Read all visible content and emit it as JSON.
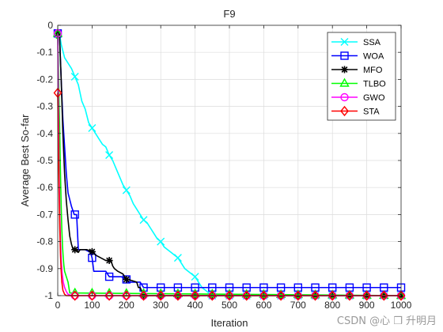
{
  "chart_data": {
    "type": "line",
    "title": "F9",
    "xlabel": "Iteration",
    "ylabel": "Average Best So-far",
    "xlim": [
      0,
      1000
    ],
    "ylim": [
      -1,
      0
    ],
    "xticks": [
      "0",
      "100",
      "200",
      "300",
      "400",
      "500",
      "600",
      "700",
      "800",
      "900",
      "1000"
    ],
    "yticks": [
      "0",
      "-0.1",
      "-0.2",
      "-0.3",
      "-0.4",
      "-0.5",
      "-0.6",
      "-0.7",
      "-0.8",
      "-0.9",
      "-1"
    ],
    "grid": true,
    "legend_position": "top-right",
    "series": [
      {
        "name": "SSA",
        "color": "#00ffff",
        "marker": "x",
        "x": [
          0,
          5,
          10,
          20,
          30,
          40,
          50,
          60,
          70,
          80,
          90,
          100,
          110,
          120,
          130,
          140,
          150,
          160,
          170,
          180,
          190,
          200,
          210,
          220,
          230,
          240,
          250,
          260,
          270,
          280,
          290,
          300,
          310,
          320,
          330,
          340,
          350,
          360,
          370,
          380,
          390,
          400,
          410,
          420,
          430,
          440,
          450,
          1000
        ],
        "y": [
          -0.03,
          -0.03,
          -0.07,
          -0.12,
          -0.14,
          -0.16,
          -0.19,
          -0.22,
          -0.28,
          -0.31,
          -0.36,
          -0.38,
          -0.4,
          -0.42,
          -0.44,
          -0.45,
          -0.48,
          -0.5,
          -0.53,
          -0.56,
          -0.59,
          -0.61,
          -0.63,
          -0.66,
          -0.68,
          -0.7,
          -0.72,
          -0.73,
          -0.75,
          -0.77,
          -0.79,
          -0.8,
          -0.82,
          -0.83,
          -0.84,
          -0.85,
          -0.86,
          -0.88,
          -0.9,
          -0.91,
          -0.92,
          -0.93,
          -0.95,
          -0.97,
          -0.98,
          -0.99,
          -1.0,
          -1.0
        ],
        "marker_x": [
          0,
          50,
          100,
          150,
          200,
          250,
          300,
          350,
          400,
          450,
          500,
          550,
          600,
          650,
          700,
          750,
          800,
          850,
          900,
          950,
          1000
        ]
      },
      {
        "name": "WOA",
        "color": "#0000ff",
        "marker": "square",
        "x": [
          0,
          5,
          10,
          15,
          20,
          25,
          30,
          40,
          48,
          55,
          60,
          80,
          95,
          100,
          105,
          140,
          150,
          185,
          200,
          205,
          240,
          250,
          1000
        ],
        "y": [
          -0.03,
          -0.03,
          -0.2,
          -0.35,
          -0.45,
          -0.55,
          -0.62,
          -0.67,
          -0.7,
          -0.7,
          -0.83,
          -0.83,
          -0.84,
          -0.86,
          -0.91,
          -0.91,
          -0.93,
          -0.93,
          -0.94,
          -0.95,
          -0.95,
          -0.97,
          -0.97
        ],
        "marker_x": [
          0,
          50,
          100,
          150,
          200,
          250,
          300,
          350,
          400,
          450,
          500,
          550,
          600,
          650,
          700,
          750,
          800,
          850,
          900,
          950,
          1000
        ]
      },
      {
        "name": "MFO",
        "color": "#000000",
        "marker": "star",
        "x": [
          0,
          5,
          10,
          15,
          20,
          25,
          30,
          35,
          40,
          45,
          50,
          55,
          60,
          65,
          85,
          105,
          110,
          140,
          155,
          160,
          165,
          175,
          190,
          195,
          200,
          205,
          230,
          235,
          240,
          250,
          1000
        ],
        "y": [
          -0.03,
          -0.03,
          -0.2,
          -0.4,
          -0.55,
          -0.65,
          -0.72,
          -0.78,
          -0.81,
          -0.83,
          -0.83,
          -0.83,
          -0.84,
          -0.83,
          -0.83,
          -0.84,
          -0.85,
          -0.87,
          -0.87,
          -0.89,
          -0.9,
          -0.91,
          -0.92,
          -0.93,
          -0.94,
          -0.94,
          -0.95,
          -0.97,
          -0.97,
          -1.0,
          -1.0
        ],
        "marker_x": [
          0,
          50,
          100,
          150,
          200,
          250,
          300,
          350,
          400,
          450,
          500,
          550,
          600,
          650,
          700,
          750,
          800,
          850,
          900,
          950,
          1000
        ]
      },
      {
        "name": "TLBO",
        "color": "#00ff00",
        "marker": "triangle",
        "x": [
          -4,
          0,
          5,
          8,
          10,
          12,
          14,
          16,
          18,
          20,
          25,
          30,
          35,
          1000
        ],
        "y": [
          -0.05,
          -0.03,
          -0.35,
          -0.55,
          -0.67,
          -0.76,
          -0.82,
          -0.86,
          -0.89,
          -0.91,
          -0.93,
          -0.95,
          -0.99,
          -1.0
        ],
        "marker_x": [
          0,
          50,
          100,
          150,
          200,
          250,
          300,
          350,
          400,
          450,
          500,
          550,
          600,
          650,
          700,
          750,
          800,
          850,
          900,
          950,
          1000
        ]
      },
      {
        "name": "GWO",
        "color": "#ff00ff",
        "marker": "circle",
        "x": [
          0,
          2,
          4,
          6,
          8,
          10,
          13,
          16,
          20,
          25,
          30,
          40,
          1000
        ],
        "y": [
          -0.03,
          -0.3,
          -0.55,
          -0.7,
          -0.8,
          -0.87,
          -0.92,
          -0.95,
          -0.97,
          -0.985,
          -0.995,
          -1.0,
          -1.0
        ],
        "marker_x": [
          0,
          50,
          100,
          150,
          200,
          250,
          300,
          350,
          400,
          450,
          500,
          550,
          600,
          650,
          700,
          750,
          800,
          850,
          900,
          950,
          1000
        ]
      },
      {
        "name": "STA",
        "color": "#ff0000",
        "marker": "diamond",
        "x": [
          0,
          2,
          4,
          6,
          8,
          10,
          12,
          15,
          20,
          25,
          1000
        ],
        "y": [
          -0.25,
          -0.45,
          -0.62,
          -0.75,
          -0.85,
          -0.91,
          -0.95,
          -0.98,
          -0.995,
          -1.0,
          -1.0
        ],
        "marker_x": [
          0,
          50,
          100,
          150,
          200,
          250,
          300,
          350,
          400,
          450,
          500,
          550,
          600,
          650,
          700,
          750,
          800,
          850,
          900,
          950,
          1000
        ]
      }
    ]
  },
  "watermark": "CSDN @心 ❒ 升明月"
}
